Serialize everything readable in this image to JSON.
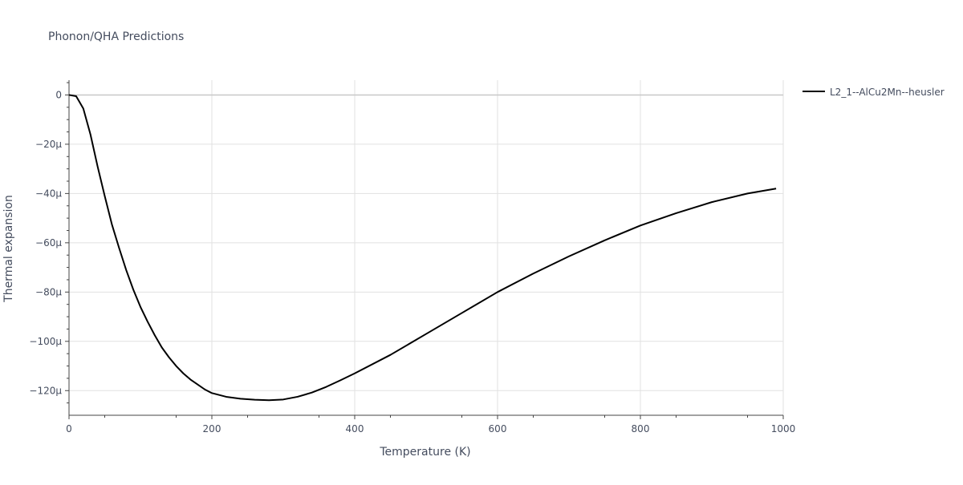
{
  "chart_data": {
    "type": "line",
    "title": "Phonon/QHA Predictions",
    "xlabel": "Temperature (K)",
    "ylabel": "Thermal expansion",
    "xlim": [
      0,
      1000
    ],
    "ylim": [
      -130,
      6
    ],
    "x_ticks": [
      0,
      200,
      400,
      600,
      800,
      1000
    ],
    "x_tick_labels": [
      "0",
      "200",
      "400",
      "600",
      "800",
      "1000"
    ],
    "y_ticks": [
      0,
      -20,
      -40,
      -60,
      -80,
      -100,
      -120
    ],
    "y_tick_labels": [
      "0",
      "−20μ",
      "−40μ",
      "−60μ",
      "−80μ",
      "−100μ",
      "−120μ"
    ],
    "grid": true,
    "legend_position": "top-right",
    "series": [
      {
        "name": "L2_1--AlCu2Mn--heusler",
        "color": "#000000",
        "x": [
          0,
          10,
          20,
          30,
          40,
          50,
          60,
          70,
          80,
          90,
          100,
          110,
          120,
          130,
          140,
          150,
          160,
          170,
          180,
          190,
          200,
          220,
          240,
          260,
          280,
          300,
          320,
          340,
          360,
          380,
          400,
          450,
          500,
          550,
          600,
          650,
          700,
          750,
          800,
          850,
          900,
          950,
          990
        ],
        "y": [
          0,
          -0.5,
          -5.5,
          -16,
          -29,
          -41,
          -52.5,
          -62,
          -71,
          -79,
          -86,
          -92,
          -97.5,
          -102.5,
          -106.5,
          -110,
          -113,
          -115.5,
          -117.5,
          -119.5,
          -121,
          -122.5,
          -123.3,
          -123.7,
          -123.9,
          -123.6,
          -122.5,
          -120.8,
          -118.5,
          -115.8,
          -113,
          -105.5,
          -97,
          -88.5,
          -80,
          -72.5,
          -65.5,
          -59,
          -53,
          -48,
          -43.5,
          -40,
          -38
        ]
      }
    ]
  }
}
